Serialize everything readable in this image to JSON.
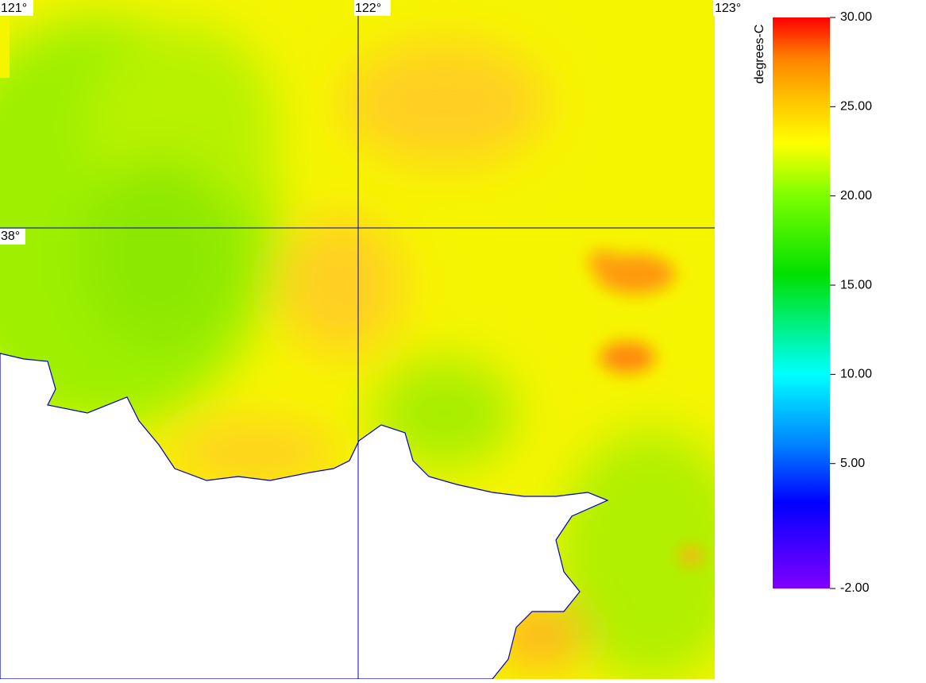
{
  "map": {
    "lon_labels": [
      "121°",
      "122°",
      "123°"
    ],
    "lat_labels": [
      "38°"
    ]
  },
  "colorbar": {
    "label": "degrees-C",
    "lim": [
      -2,
      30
    ],
    "ticks": [
      {
        "value": 30,
        "label": "30.00"
      },
      {
        "value": 25,
        "label": "25.00"
      },
      {
        "value": 20,
        "label": "20.00"
      },
      {
        "value": 15,
        "label": "15.00"
      },
      {
        "value": 10,
        "label": "10.00"
      },
      {
        "value": 5,
        "label": "5.00"
      },
      {
        "value": -2,
        "label": "-2.00"
      }
    ]
  }
}
